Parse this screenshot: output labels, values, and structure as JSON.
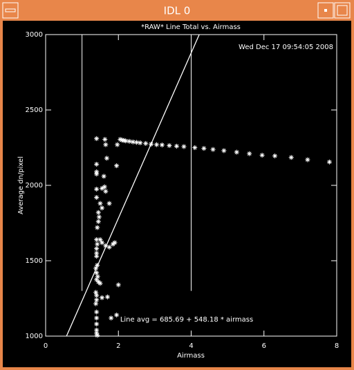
{
  "window": {
    "title": "IDL 0"
  },
  "chart_data": {
    "type": "scatter",
    "title": "*RAW* Line Total vs. Airmass",
    "timestamp": "Wed Dec 17 09:54:05 2008",
    "xlabel": "Airmass",
    "ylabel": "Average dn/pixel",
    "xlim": [
      0,
      8
    ],
    "ylim": [
      1000,
      3000
    ],
    "xticks": [
      0,
      2,
      4,
      6,
      8
    ],
    "yticks": [
      1000,
      1500,
      2000,
      2500,
      3000
    ],
    "color": "#ffffff",
    "x": [
      1.97,
      2.05,
      2.1,
      2.15,
      2.2,
      2.3,
      2.4,
      2.5,
      2.6,
      2.75,
      2.9,
      3.05,
      3.2,
      3.4,
      3.6,
      3.8,
      4.1,
      4.35,
      4.6,
      4.9,
      5.25,
      5.6,
      5.95,
      6.3,
      6.75,
      7.2,
      7.8,
      1.4,
      1.4,
      1.4,
      1.4,
      1.4,
      1.4,
      1.45,
      1.47,
      1.45,
      1.42,
      1.4,
      1.42,
      1.4,
      1.4,
      1.4,
      1.42,
      1.38,
      1.4,
      1.43,
      1.4,
      1.45,
      1.5,
      1.38,
      1.4,
      1.4,
      1.38,
      1.4,
      1.4,
      1.4,
      1.4,
      1.4,
      1.42,
      1.63,
      1.65,
      1.68,
      1.6,
      1.55,
      1.65,
      1.62,
      1.75,
      1.55,
      1.5,
      1.55,
      1.65,
      1.75,
      1.85,
      1.9,
      1.55,
      1.7,
      1.8,
      1.95,
      2.0,
      1.95,
      1.5
    ],
    "values": [
      2270,
      2305,
      2300,
      2298,
      2295,
      2292,
      2288,
      2285,
      2282,
      2278,
      2273,
      2270,
      2268,
      2264,
      2260,
      2257,
      2250,
      2245,
      2238,
      2230,
      2220,
      2210,
      2200,
      2195,
      2185,
      2170,
      2155,
      2310,
      2140,
      2090,
      2075,
      1975,
      1920,
      1820,
      1790,
      1760,
      1720,
      1640,
      1610,
      1580,
      1550,
      1530,
      1470,
      1450,
      1420,
      1395,
      1375,
      1360,
      1350,
      1290,
      1270,
      1240,
      1215,
      1160,
      1120,
      1080,
      1040,
      1020,
      1005,
      2305,
      2270,
      2180,
      2060,
      1980,
      1960,
      1990,
      1880,
      1850,
      1640,
      1620,
      1600,
      1590,
      1610,
      1620,
      1255,
      1260,
      1120,
      1140,
      1340,
      2130,
      1880
    ],
    "fit": {
      "intercept": 685.69,
      "slope": 548.18,
      "label": "Line avg = 685.69 + 548.18 * airmass"
    },
    "vlines": [
      {
        "x": 1,
        "ymin": 1300,
        "ymax": 3000
      },
      {
        "x": 4,
        "ymin": 1300,
        "ymax": 3000
      }
    ]
  }
}
